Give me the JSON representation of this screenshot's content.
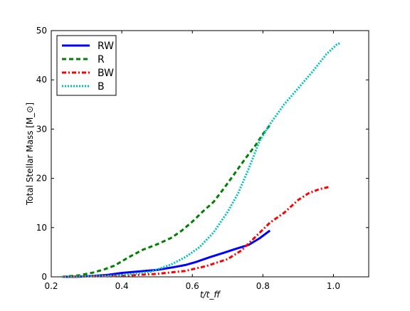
{
  "chart_data": {
    "type": "line",
    "xlabel": "t/t_ff",
    "ylabel": "Total Stellar Mass [M_⊙]",
    "xlim": [
      0.2,
      1.1
    ],
    "ylim": [
      0,
      50
    ],
    "xticks": [
      "0.2",
      "0.4",
      "0.6",
      "0.8",
      "1.0"
    ],
    "yticks": [
      "0",
      "10",
      "20",
      "30",
      "40",
      "50"
    ],
    "legend_position": "upper-left",
    "grid": false,
    "series": [
      {
        "name": "RW",
        "color": "#0000ff",
        "style": "solid",
        "points": [
          [
            0.23,
            0.0
          ],
          [
            0.28,
            0.05
          ],
          [
            0.32,
            0.2
          ],
          [
            0.36,
            0.4
          ],
          [
            0.4,
            0.8
          ],
          [
            0.45,
            1.1
          ],
          [
            0.5,
            1.4
          ],
          [
            0.55,
            2.0
          ],
          [
            0.58,
            2.4
          ],
          [
            0.61,
            3.0
          ],
          [
            0.65,
            4.0
          ],
          [
            0.69,
            4.9
          ],
          [
            0.72,
            5.6
          ],
          [
            0.76,
            6.5
          ],
          [
            0.79,
            7.8
          ],
          [
            0.82,
            9.4
          ]
        ]
      },
      {
        "name": "R",
        "color": "#008000",
        "style": "dashed",
        "points": [
          [
            0.23,
            0.0
          ],
          [
            0.28,
            0.3
          ],
          [
            0.32,
            0.9
          ],
          [
            0.35,
            1.5
          ],
          [
            0.38,
            2.3
          ],
          [
            0.42,
            4.0
          ],
          [
            0.46,
            5.5
          ],
          [
            0.5,
            6.6
          ],
          [
            0.54,
            7.9
          ],
          [
            0.57,
            9.4
          ],
          [
            0.6,
            11.2
          ],
          [
            0.63,
            13.3
          ],
          [
            0.66,
            15.2
          ],
          [
            0.69,
            18.0
          ],
          [
            0.72,
            21.0
          ],
          [
            0.75,
            24.0
          ],
          [
            0.78,
            26.8
          ],
          [
            0.8,
            29.0
          ],
          [
            0.82,
            30.8
          ]
        ]
      },
      {
        "name": "BW",
        "color": "#ff0000",
        "style": "dashdot",
        "points": [
          [
            0.23,
            0.0
          ],
          [
            0.4,
            0.2
          ],
          [
            0.5,
            0.6
          ],
          [
            0.58,
            1.2
          ],
          [
            0.64,
            2.2
          ],
          [
            0.7,
            3.6
          ],
          [
            0.74,
            5.4
          ],
          [
            0.78,
            8.2
          ],
          [
            0.82,
            11.0
          ],
          [
            0.86,
            13.0
          ],
          [
            0.9,
            15.6
          ],
          [
            0.93,
            17.0
          ],
          [
            0.96,
            17.8
          ],
          [
            0.99,
            18.3
          ]
        ]
      },
      {
        "name": "B",
        "color": "#00bfbf",
        "style": "dotted",
        "points": [
          [
            0.23,
            0.0
          ],
          [
            0.4,
            0.3
          ],
          [
            0.48,
            1.0
          ],
          [
            0.54,
            2.5
          ],
          [
            0.58,
            4.0
          ],
          [
            0.62,
            6.0
          ],
          [
            0.66,
            9.0
          ],
          [
            0.7,
            13.2
          ],
          [
            0.73,
            17.0
          ],
          [
            0.76,
            22.0
          ],
          [
            0.79,
            27.5
          ],
          [
            0.82,
            31.0
          ],
          [
            0.86,
            35.0
          ],
          [
            0.9,
            38.3
          ],
          [
            0.94,
            41.6
          ],
          [
            0.98,
            45.2
          ],
          [
            1.01,
            47.2
          ],
          [
            1.02,
            47.5
          ]
        ]
      }
    ]
  }
}
